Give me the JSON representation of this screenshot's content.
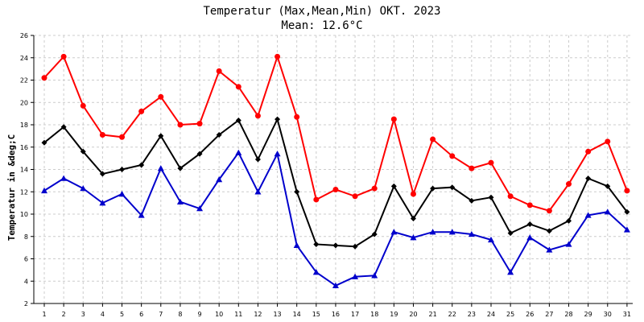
{
  "header": {
    "title": "Temperatur (Max,Mean,Min) OKT. 2023",
    "subtitle": "Mean: 12.6°C"
  },
  "colors": {
    "max": "#ff0000",
    "mean": "#000000",
    "min": "#0000cc",
    "grid": "#cccccc"
  },
  "chart_data": {
    "type": "line",
    "title": "Temperatur (Max,Mean,Min) OKT. 2023",
    "subtitle": "Mean: 12.6°C",
    "xlabel": "",
    "ylabel": "Temperatur in &deg;C",
    "ylim": [
      2,
      26
    ],
    "yticks": [
      2,
      4,
      6,
      8,
      10,
      12,
      14,
      16,
      18,
      20,
      22,
      24,
      26
    ],
    "grid": true,
    "x": [
      1,
      2,
      3,
      4,
      5,
      6,
      7,
      8,
      9,
      10,
      11,
      12,
      13,
      14,
      15,
      16,
      17,
      18,
      19,
      20,
      21,
      22,
      23,
      24,
      25,
      26,
      27,
      28,
      29,
      30,
      31
    ],
    "series": [
      {
        "key": "max",
        "marker": "circle",
        "values": [
          22.2,
          24.1,
          19.7,
          17.1,
          16.9,
          19.2,
          20.5,
          18.0,
          18.1,
          22.8,
          21.4,
          18.8,
          24.1,
          18.7,
          11.3,
          12.2,
          11.6,
          12.3,
          18.5,
          11.8,
          16.7,
          15.2,
          14.1,
          14.6,
          11.6,
          10.8,
          10.3,
          12.7,
          15.6,
          16.5,
          12.1
        ]
      },
      {
        "key": "mean",
        "marker": "diamond",
        "values": [
          16.4,
          17.8,
          15.6,
          13.6,
          14.0,
          14.4,
          17.0,
          14.1,
          15.4,
          17.1,
          18.4,
          14.9,
          18.5,
          12.0,
          7.3,
          7.2,
          7.1,
          8.2,
          12.5,
          9.6,
          12.3,
          12.4,
          11.2,
          11.5,
          8.3,
          9.1,
          8.5,
          9.4,
          13.2,
          12.5,
          10.2
        ]
      },
      {
        "key": "min",
        "marker": "triangle",
        "values": [
          12.1,
          13.2,
          12.3,
          11.0,
          11.8,
          9.9,
          14.1,
          11.1,
          10.5,
          13.1,
          15.5,
          12.0,
          15.4,
          7.2,
          4.8,
          3.6,
          4.4,
          4.5,
          8.4,
          7.9,
          8.4,
          8.4,
          8.2,
          7.7,
          4.8,
          7.9,
          6.8,
          7.3,
          9.9,
          10.2,
          8.6
        ]
      }
    ]
  }
}
